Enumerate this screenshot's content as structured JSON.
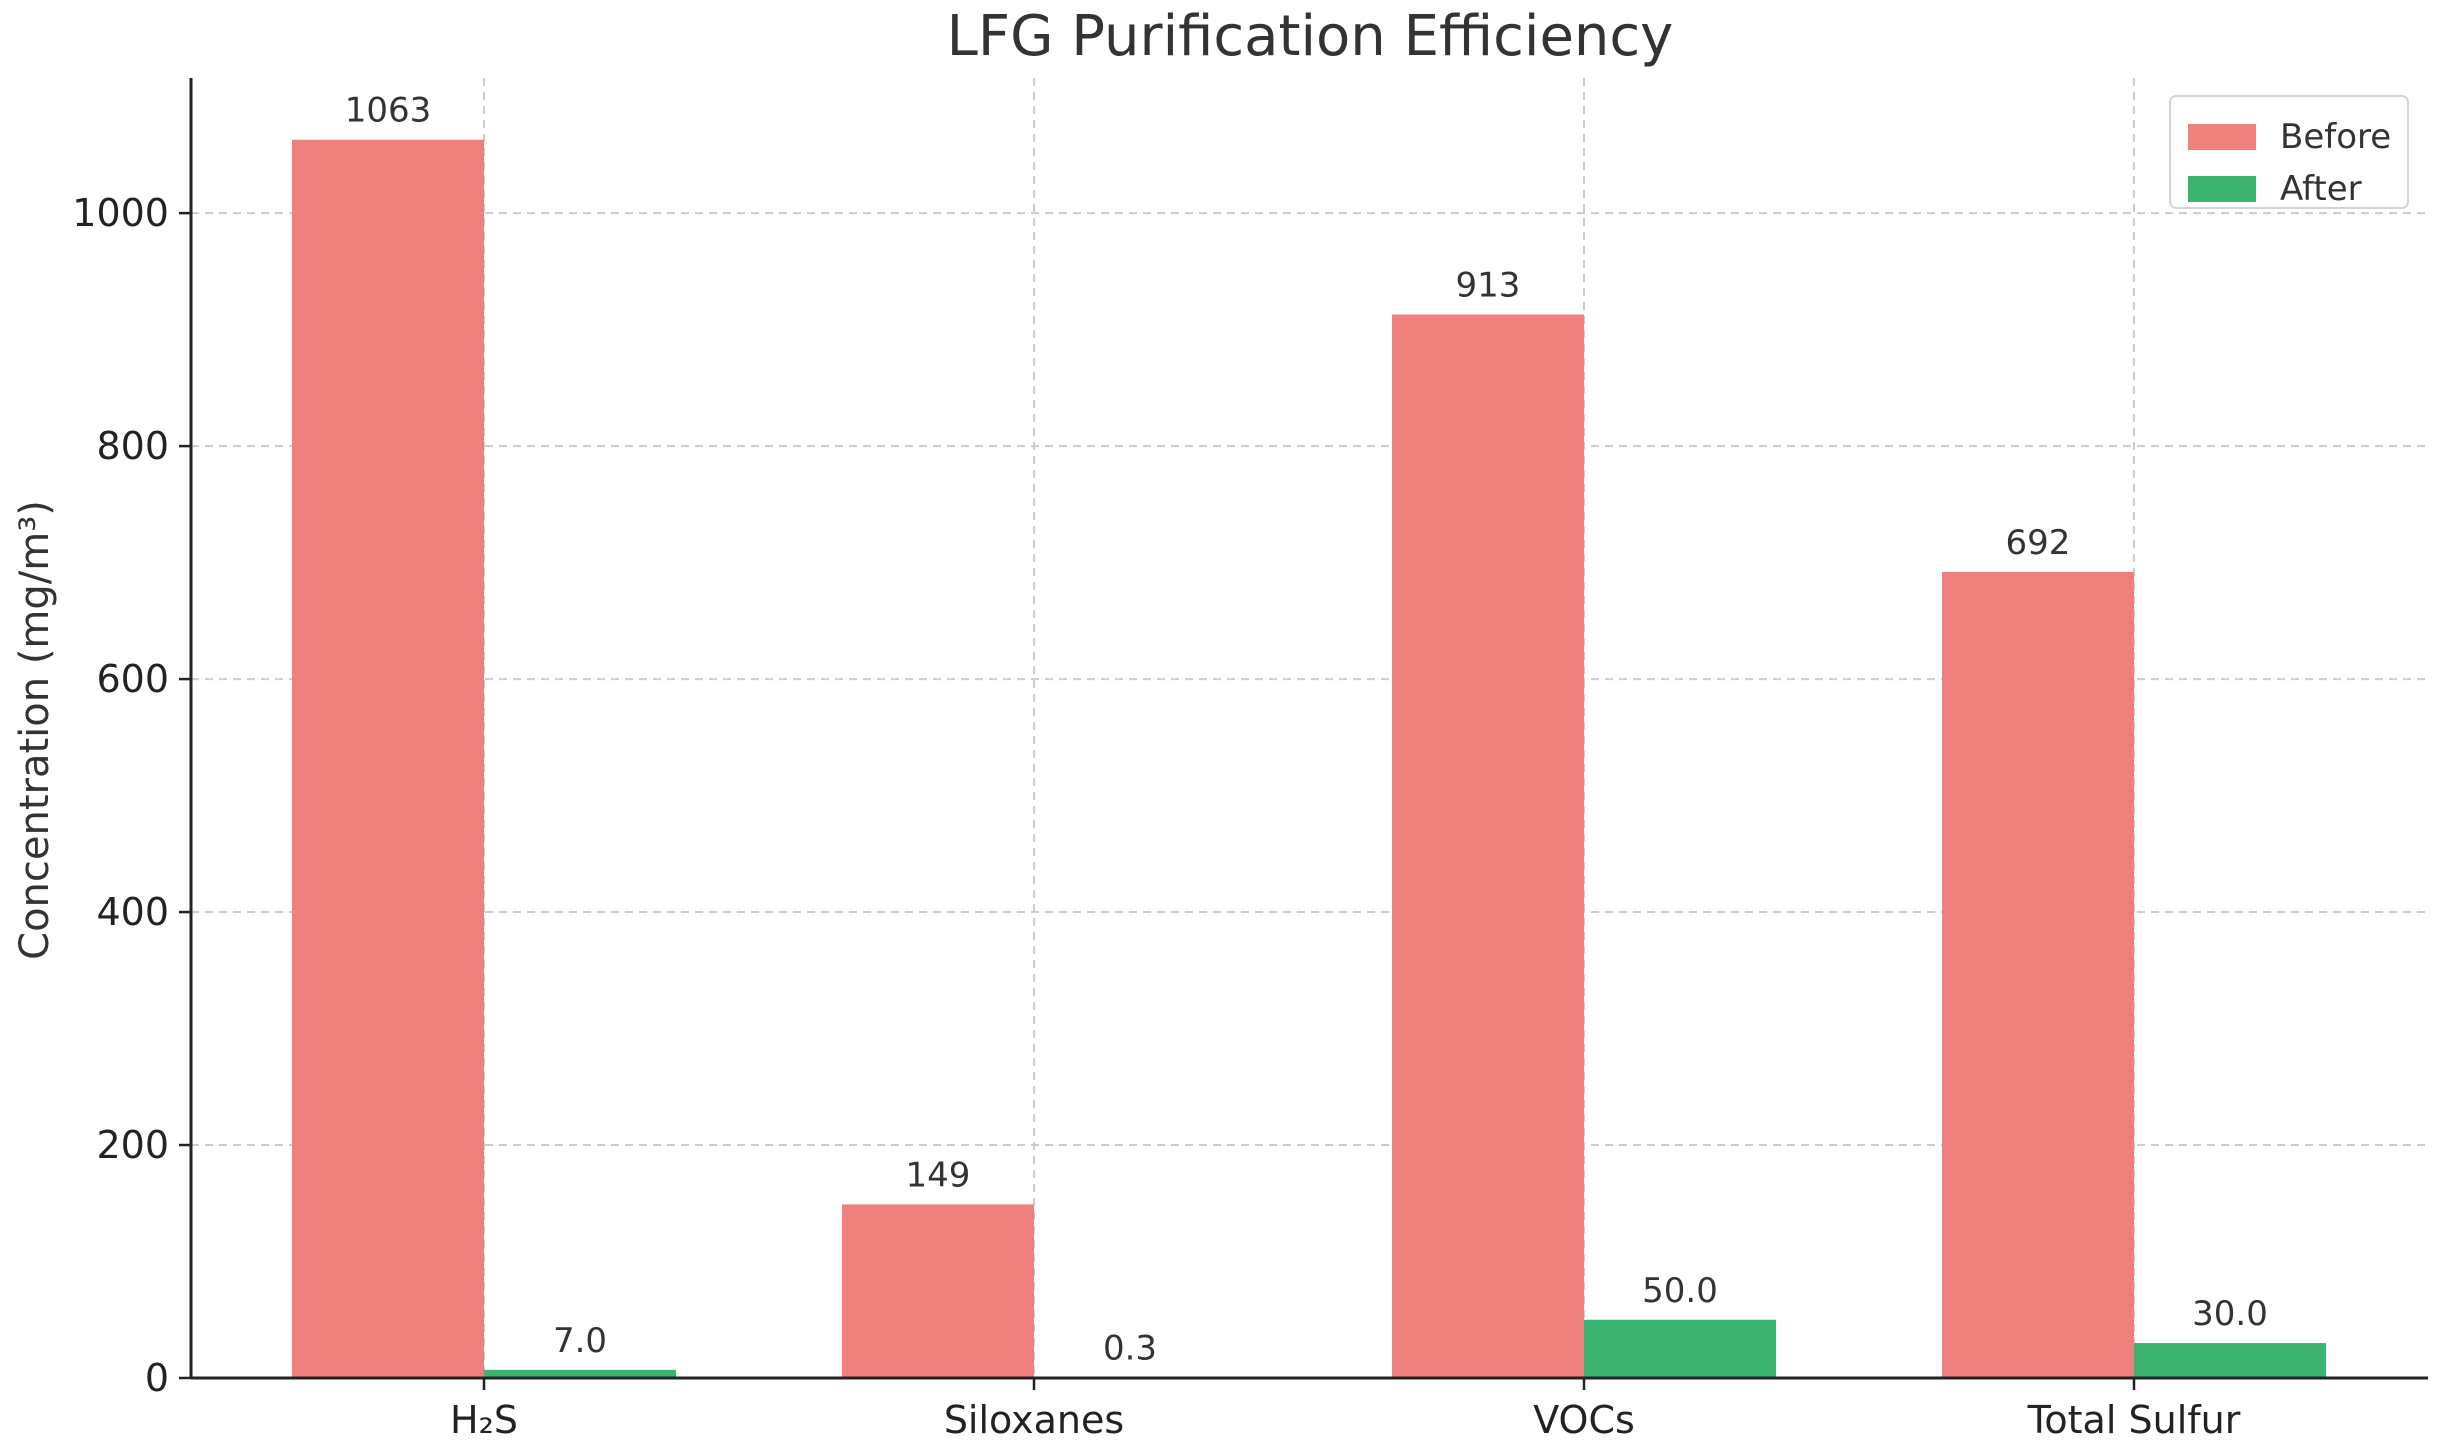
{
  "chart_data": {
    "type": "bar",
    "title": "LFG Purification Efficiency",
    "xlabel": "",
    "ylabel": "Concentration (mg/m³)",
    "categories": [
      "H₂S",
      "Siloxanes",
      "VOCs",
      "Total Sulfur"
    ],
    "series": [
      {
        "name": "Before",
        "color": "#f08080",
        "values": [
          1063,
          149,
          913,
          692
        ],
        "labels": [
          "1063",
          "149",
          "913",
          "692"
        ]
      },
      {
        "name": "After",
        "color": "#3cb371",
        "values": [
          7.0,
          0.3,
          50.0,
          30.0
        ],
        "labels": [
          "7.0",
          "0.3",
          "50.0",
          "30.0"
        ]
      }
    ],
    "ylim": [
      0,
      1116
    ],
    "yticks": [
      0,
      200,
      400,
      600,
      800,
      1000
    ],
    "grid": true,
    "legend_position": "top-right"
  }
}
